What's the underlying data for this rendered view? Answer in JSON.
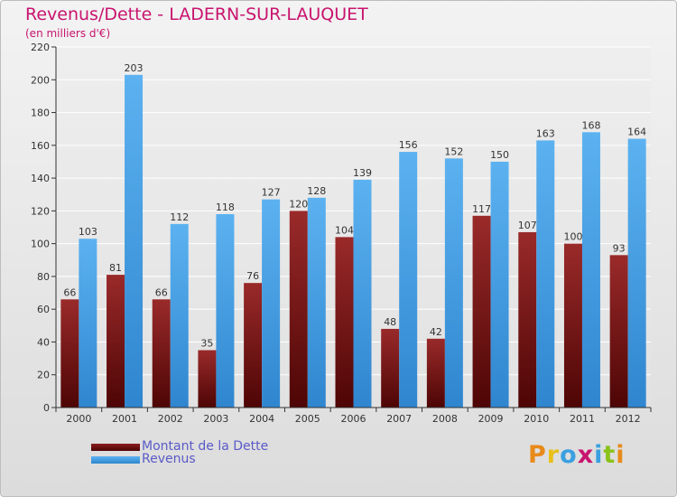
{
  "title": "Revenus/Dette - LADERN-SUR-LAUQUET",
  "subtitle": "(en milliers d'€)",
  "logo": "Proxiti",
  "colors": {
    "dette": "#7a1414",
    "revenus": "#4aa3e6",
    "title": "#c8146e",
    "legend_text": "#5a5ac8"
  },
  "chart_data": {
    "type": "bar",
    "title": "Revenus/Dette - LADERN-SUR-LAUQUET",
    "ylabel": "",
    "xlabel": "",
    "ylim": [
      0,
      220
    ],
    "yticks": [
      0,
      20,
      40,
      60,
      80,
      100,
      120,
      140,
      160,
      180,
      200,
      220
    ],
    "grid": true,
    "legend": "bottom-left",
    "categories": [
      "2000",
      "2001",
      "2002",
      "2003",
      "2004",
      "2005",
      "2006",
      "2007",
      "2008",
      "2009",
      "2010",
      "2011",
      "2012"
    ],
    "series": [
      {
        "name": "Montant de la Dette",
        "values": [
          66,
          81,
          66,
          35,
          76,
          120,
          104,
          48,
          42,
          117,
          107,
          100,
          93
        ]
      },
      {
        "name": "Revenus",
        "values": [
          103,
          203,
          112,
          118,
          127,
          128,
          139,
          156,
          152,
          150,
          163,
          168,
          164
        ]
      }
    ]
  }
}
